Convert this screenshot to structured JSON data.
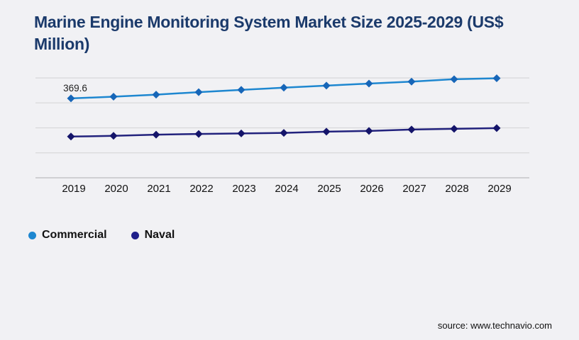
{
  "page": {
    "background_color": "#f1f1f4"
  },
  "header": {
    "title": "Marine Engine Monitoring System Market Size 2025-2029 (US$ Million)",
    "title_color": "#1b3a6b"
  },
  "footer": {
    "source": "source: www.technavio.com"
  },
  "legend": {
    "items": [
      {
        "label": "Commercial",
        "color": "#1e87d0"
      },
      {
        "label": "Naval",
        "color": "#1f1f8a"
      }
    ]
  },
  "chart_data": {
    "type": "line",
    "title": "Marine Engine Monitoring System Market Size 2025-2029 (US$ Million)",
    "x": [
      "2019",
      "2020",
      "2021",
      "2022",
      "2023",
      "2024",
      "2025",
      "2026",
      "2027",
      "2028",
      "2029"
    ],
    "series": [
      {
        "name": "Commercial",
        "line_color": "#1e87d0",
        "marker_color": "#1766b8",
        "marker": "diamond",
        "values": [
          369.6,
          377.5,
          387.2,
          398.8,
          409.4,
          419.6,
          429.3,
          438.5,
          447.6,
          459.0,
          463.5
        ]
      },
      {
        "name": "Naval",
        "line_color": "#22227d",
        "marker_color": "#14146a",
        "marker": "diamond",
        "values": [
          191.9,
          195.2,
          200.8,
          204.1,
          206.4,
          208.9,
          214.9,
          218.2,
          224.8,
          228.1,
          231.4
        ]
      }
    ],
    "ylim": [
      0,
      465
    ],
    "y_axis_visible": false,
    "gridline_count": 5,
    "grid_color": "#d8d8da",
    "axis_color": "#c4c4c6",
    "tick_label_color": "#111111",
    "annotation_color": "#222222",
    "annotations": [
      {
        "series": "Commercial",
        "x_index": 0,
        "text": "369.6"
      }
    ],
    "legend_position": "bottom-left"
  }
}
